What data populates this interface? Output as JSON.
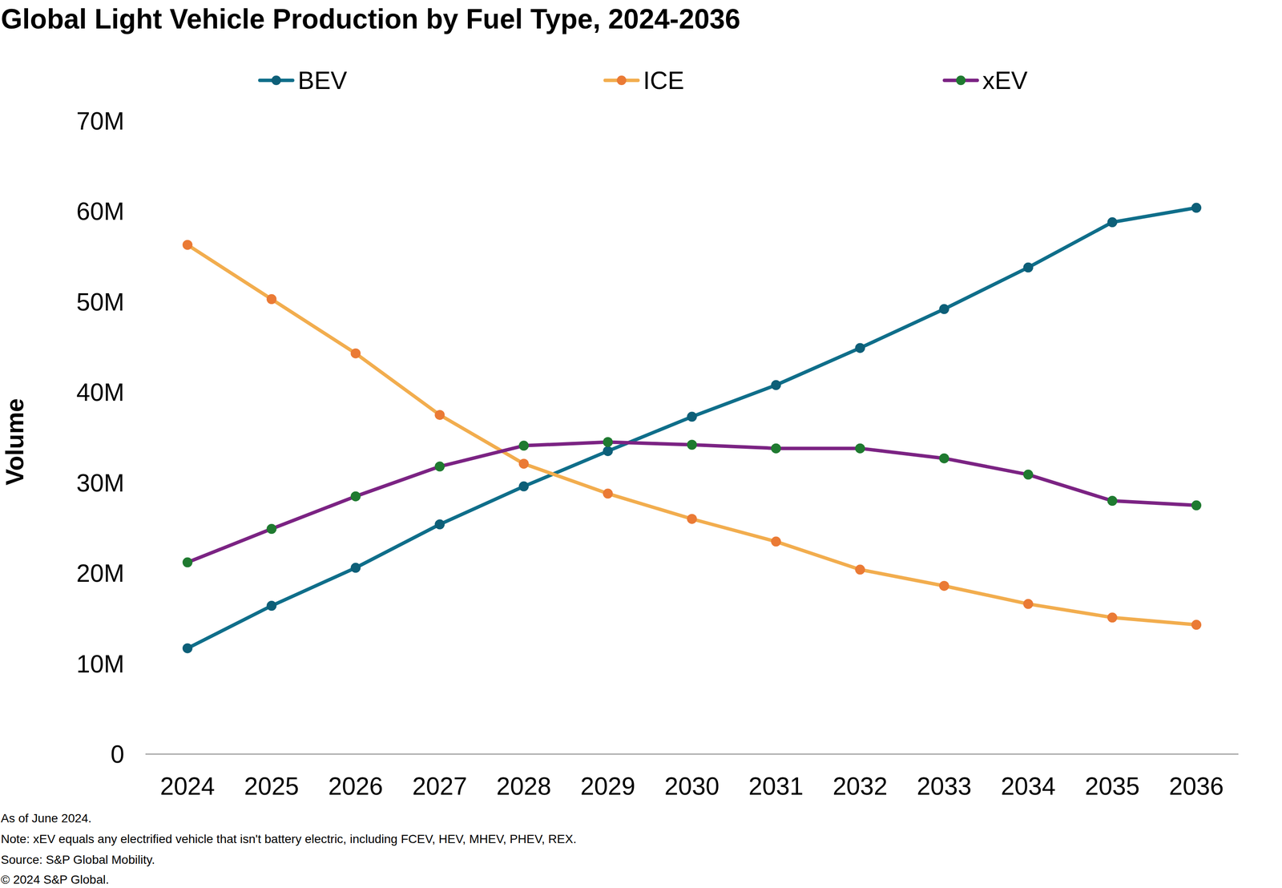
{
  "chart_data": {
    "type": "line",
    "title": "Global Light Vehicle Production by Fuel Type, 2024-2036",
    "y_label": "Volume",
    "categories": [
      "2024",
      "2025",
      "2026",
      "2027",
      "2028",
      "2029",
      "2030",
      "2031",
      "2032",
      "2033",
      "2034",
      "2035",
      "2036"
    ],
    "series": [
      {
        "name": "BEV",
        "color": "#0f6e8a",
        "marker": "circle",
        "values": [
          11.7,
          16.4,
          20.6,
          25.4,
          29.6,
          33.5,
          37.3,
          40.8,
          44.9,
          49.2,
          53.8,
          58.8,
          60.4
        ]
      },
      {
        "name": "ICE",
        "color": "#f2ad4e",
        "marker": "circle",
        "values": [
          56.3,
          50.3,
          44.3,
          37.5,
          32.1,
          28.8,
          26.0,
          23.5,
          20.4,
          18.6,
          16.6,
          15.1,
          14.3
        ]
      },
      {
        "name": "xEV",
        "color": "#7b2383",
        "marker": "circle",
        "values": [
          21.2,
          24.9,
          28.5,
          31.8,
          34.1,
          34.5,
          34.2,
          33.8,
          33.8,
          32.7,
          30.9,
          28.0,
          27.5
        ]
      }
    ],
    "ylim": [
      0,
      70
    ],
    "yticks": [
      0,
      {
        "value": 10,
        "label": "10M"
      },
      {
        "value": 20,
        "label": "20M"
      },
      {
        "value": 30,
        "label": "30M"
      },
      {
        "value": 40,
        "label": "40M"
      },
      {
        "value": 50,
        "label": "50M"
      },
      {
        "value": 60,
        "label": "60M"
      },
      {
        "value": 70,
        "label": "70M"
      }
    ],
    "grid": false,
    "legend": "top",
    "annotations": [
      "As of June 2024.",
      "Note: xEV equals any electrified vehicle that isn't battery electric, including FCEV, HEV, MHEV, PHEV, REX.",
      "Source: S&P Global Mobility.",
      "© 2024 S&P Global."
    ]
  }
}
